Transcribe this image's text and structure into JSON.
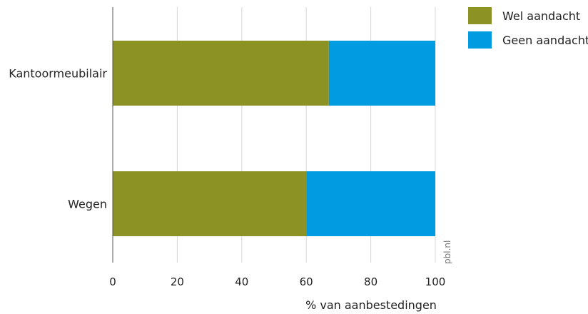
{
  "chart_data": {
    "type": "bar",
    "orientation": "horizontal",
    "stacked": true,
    "categories": [
      "Kantoormeubilair",
      "Wegen"
    ],
    "series": [
      {
        "name": "Wel aandacht",
        "values": [
          67,
          60
        ],
        "color": "#8c9224"
      },
      {
        "name": "Geen aandacht",
        "values": [
          33,
          40
        ],
        "color": "#009be0"
      }
    ],
    "xlabel": "% van aanbestedingen",
    "ylabel": "",
    "xlim": [
      0,
      100
    ],
    "xticks": [
      "0",
      "20",
      "40",
      "60",
      "80",
      "100"
    ],
    "grid": true,
    "legend_position": "top-right"
  },
  "credit": "pbl.nl"
}
